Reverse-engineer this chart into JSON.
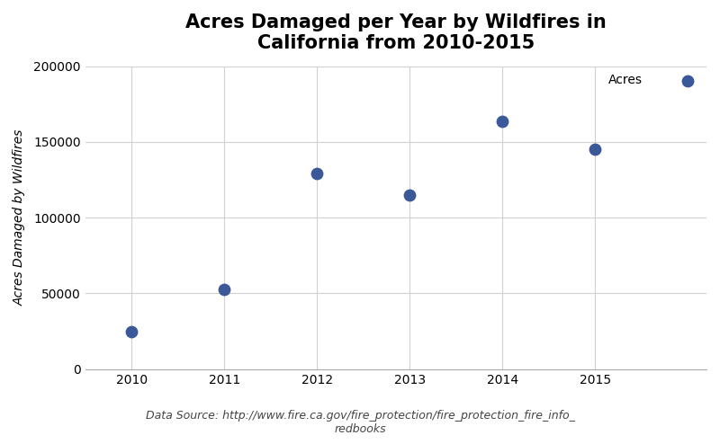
{
  "title": "Acres Damaged per Year by Wildfires in\nCalifornia from 2010-2015",
  "xlabel": "",
  "ylabel": "Acres Damaged by Wildfires",
  "years": [
    2010,
    2011,
    2012,
    2013,
    2014,
    2015
  ],
  "acres": [
    25000,
    52500,
    129000,
    115000,
    163500,
    145000
  ],
  "dot_color": "#3b5998",
  "dot_size": 80,
  "ylim": [
    0,
    200000
  ],
  "xlim": [
    2009.5,
    2016.2
  ],
  "yticks": [
    0,
    50000,
    100000,
    150000,
    200000
  ],
  "xticks": [
    2010,
    2011,
    2012,
    2013,
    2014,
    2015
  ],
  "legend_label": "Acres",
  "source_text": "Data Source: http://www.fire.ca.gov/fire_protection/fire_protection_fire_info_\nredbooks",
  "background_color": "#ffffff",
  "plot_bg_color": "#ffffff",
  "grid_color": "#d0d0d0",
  "title_fontsize": 15,
  "label_fontsize": 10,
  "tick_fontsize": 10,
  "source_fontsize": 9
}
